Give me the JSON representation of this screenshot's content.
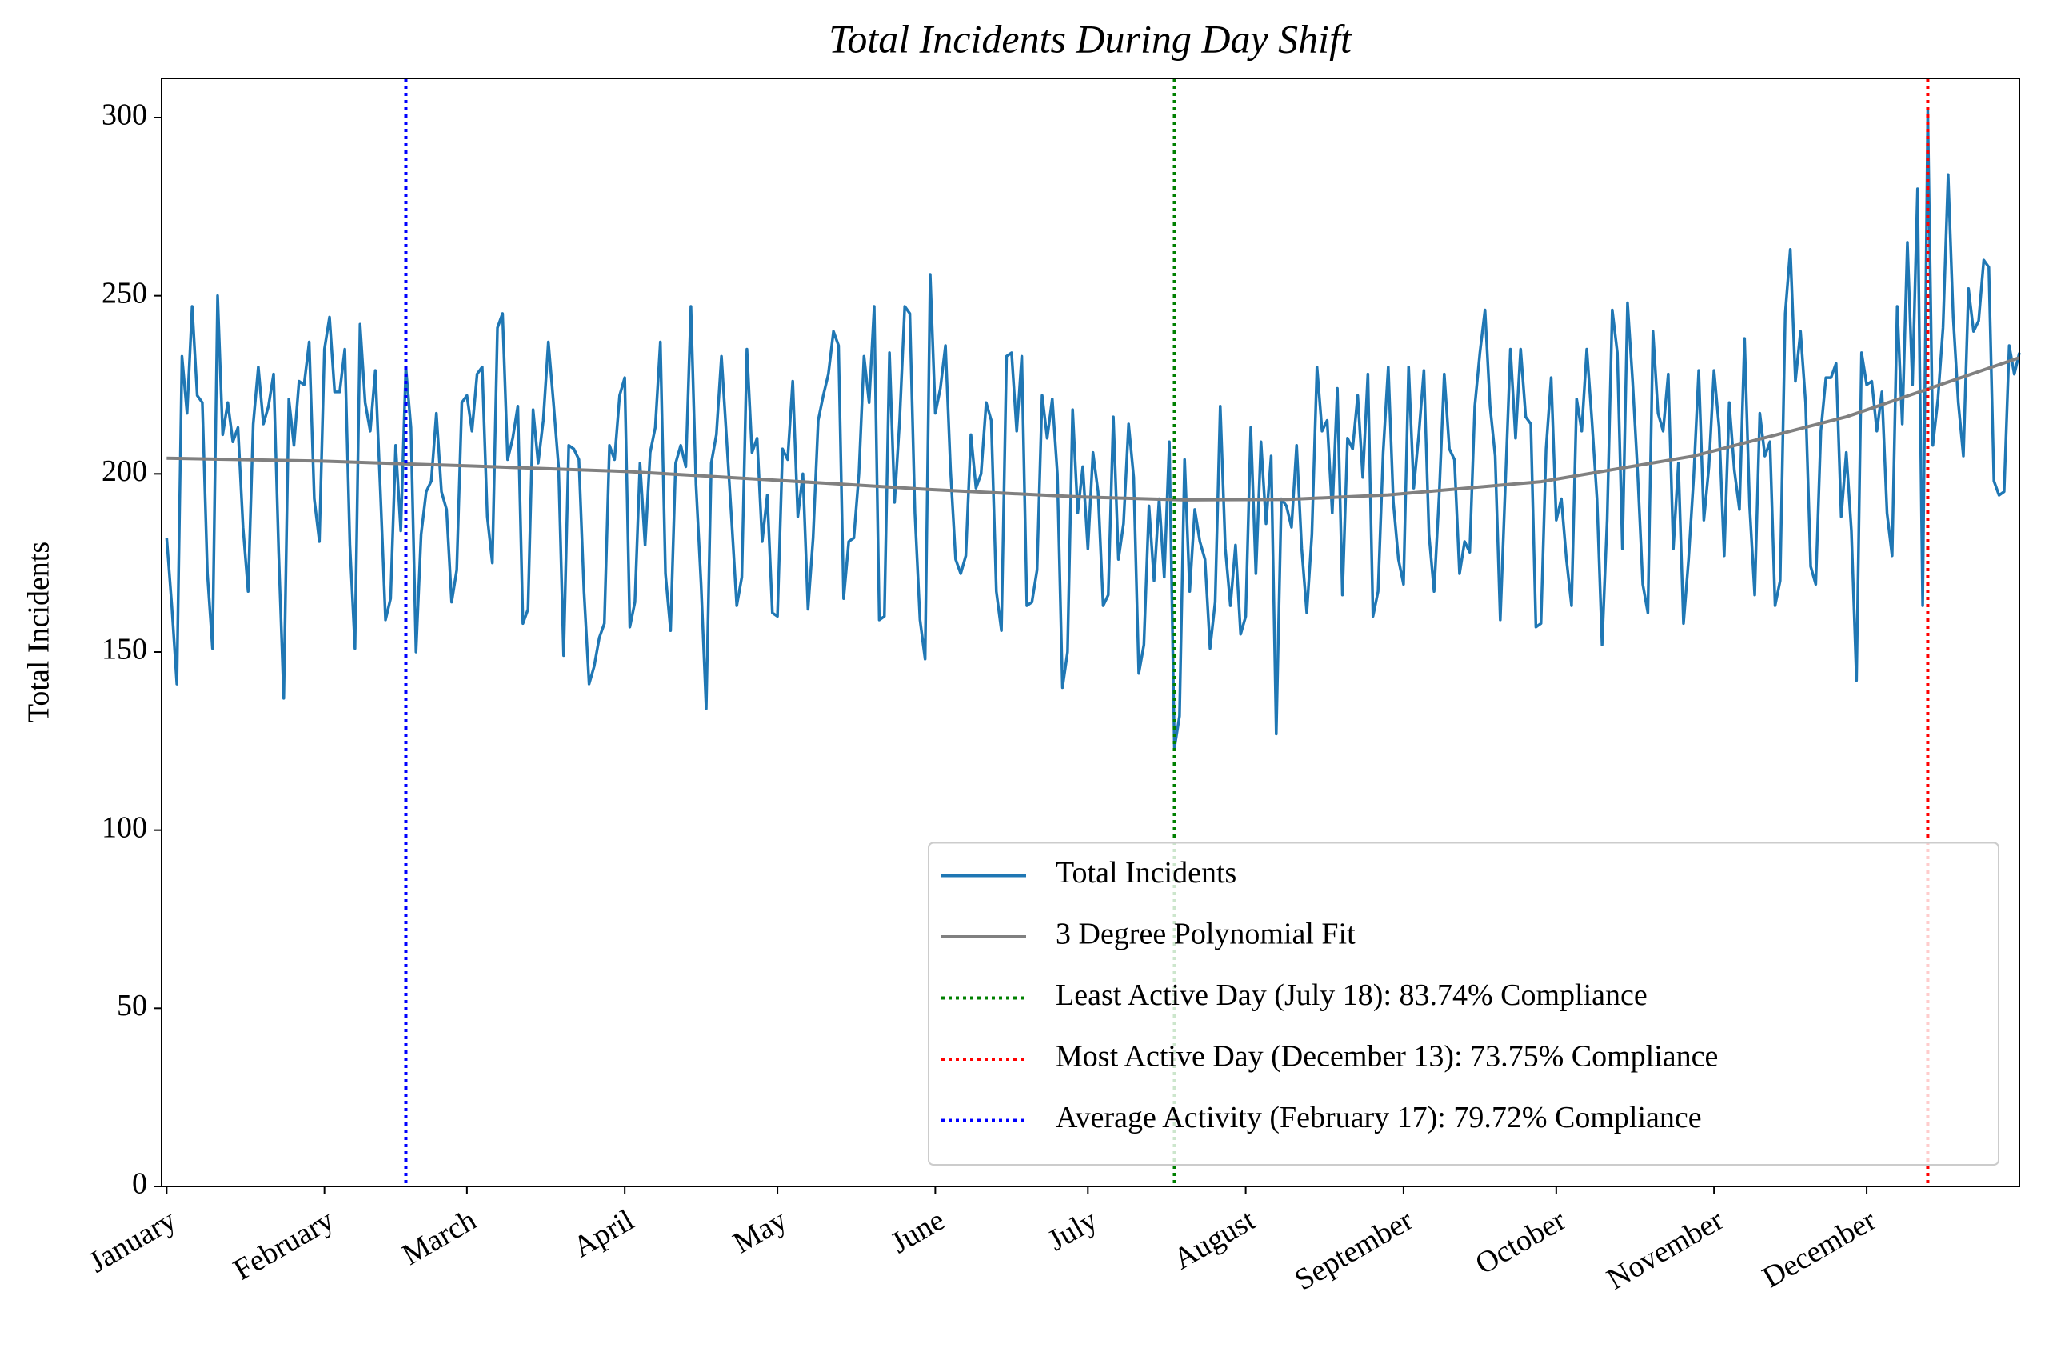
{
  "chart_data": {
    "type": "line",
    "title": "Total Incidents During Day Shift",
    "y_label": "Total Incidents",
    "xlim": [
      -1,
      364
    ],
    "ylim": [
      0,
      311
    ],
    "yticks": [
      0,
      50,
      100,
      150,
      200,
      250,
      300
    ],
    "xticks": [
      {
        "value": 0,
        "label": "January"
      },
      {
        "value": 31,
        "label": "February"
      },
      {
        "value": 59,
        "label": "March"
      },
      {
        "value": 90,
        "label": "April"
      },
      {
        "value": 120,
        "label": "May"
      },
      {
        "value": 151,
        "label": "June"
      },
      {
        "value": 181,
        "label": "July"
      },
      {
        "value": 212,
        "label": "August"
      },
      {
        "value": 243,
        "label": "September"
      },
      {
        "value": 273,
        "label": "October"
      },
      {
        "value": 304,
        "label": "November"
      },
      {
        "value": 334,
        "label": "December"
      }
    ],
    "grid": false,
    "legend": "lower right",
    "x": [
      0,
      1,
      2,
      3,
      4,
      5,
      6,
      7,
      8,
      9,
      10,
      11,
      12,
      13,
      14,
      15,
      16,
      17,
      18,
      19,
      20,
      21,
      22,
      23,
      24,
      25,
      26,
      27,
      28,
      29,
      30,
      31,
      32,
      33,
      34,
      35,
      36,
      37,
      38,
      39,
      40,
      41,
      42,
      43,
      44,
      45,
      46,
      47,
      48,
      49,
      50,
      51,
      52,
      53,
      54,
      55,
      56,
      57,
      58,
      59,
      60,
      61,
      62,
      63,
      64,
      65,
      66,
      67,
      68,
      69,
      70,
      71,
      72,
      73,
      74,
      75,
      76,
      77,
      78,
      79,
      80,
      81,
      82,
      83,
      84,
      85,
      86,
      87,
      88,
      89,
      90,
      91,
      92,
      93,
      94,
      95,
      96,
      97,
      98,
      99,
      100,
      101,
      102,
      103,
      104,
      105,
      106,
      107,
      108,
      109,
      110,
      111,
      112,
      113,
      114,
      115,
      116,
      117,
      118,
      119,
      120,
      121,
      122,
      123,
      124,
      125,
      126,
      127,
      128,
      129,
      130,
      131,
      132,
      133,
      134,
      135,
      136,
      137,
      138,
      139,
      140,
      141,
      142,
      143,
      144,
      145,
      146,
      147,
      148,
      149,
      150,
      151,
      152,
      153,
      154,
      155,
      156,
      157,
      158,
      159,
      160,
      161,
      162,
      163,
      164,
      165,
      166,
      167,
      168,
      169,
      170,
      171,
      172,
      173,
      174,
      175,
      176,
      177,
      178,
      179,
      180,
      181,
      182,
      183,
      184,
      185,
      186,
      187,
      188,
      189,
      190,
      191,
      192,
      193,
      194,
      195,
      196,
      197,
      198,
      199,
      200,
      201,
      202,
      203,
      204,
      205,
      206,
      207,
      208,
      209,
      210,
      211,
      212,
      213,
      214,
      215,
      216,
      217,
      218,
      219,
      220,
      221,
      222,
      223,
      224,
      225,
      226,
      227,
      228,
      229,
      230,
      231,
      232,
      233,
      234,
      235,
      236,
      237,
      238,
      239,
      240,
      241,
      242,
      243,
      244,
      245,
      246,
      247,
      248,
      249,
      250,
      251,
      252,
      253,
      254,
      255,
      256,
      257,
      258,
      259,
      260,
      261,
      262,
      263,
      264,
      265,
      266,
      267,
      268,
      269,
      270,
      271,
      272,
      273,
      274,
      275,
      276,
      277,
      278,
      279,
      280,
      281,
      282,
      283,
      284,
      285,
      286,
      287,
      288,
      289,
      290,
      291,
      292,
      293,
      294,
      295,
      296,
      297,
      298,
      299,
      300,
      301,
      302,
      303,
      304,
      305,
      306,
      307,
      308,
      309,
      310,
      311,
      312,
      313,
      314,
      315,
      316,
      317,
      318,
      319,
      320,
      321,
      322,
      323,
      324,
      325,
      326,
      327,
      328,
      329,
      330,
      331,
      332,
      333,
      334,
      335,
      336,
      337,
      338,
      339,
      340,
      341,
      342,
      343,
      344,
      345,
      346,
      347,
      348,
      349,
      350,
      351,
      352,
      353,
      354,
      355,
      356,
      357,
      358,
      359,
      360,
      361,
      362,
      363,
      364
    ],
    "series": [
      {
        "name": "Total Incidents",
        "color": "#1f77b4",
        "values": [
          182,
          163,
          141,
          233,
          217,
          247,
          222,
          220,
          172,
          151,
          250,
          211,
          220,
          209,
          213,
          185,
          167,
          214,
          230,
          214,
          219,
          228,
          178,
          137,
          221,
          208,
          226,
          225,
          237,
          193,
          181,
          235,
          244,
          223,
          223,
          235,
          180,
          151,
          242,
          220,
          212,
          229,
          195,
          159,
          165,
          208,
          184,
          230,
          213,
          150,
          183,
          195,
          198,
          217,
          195,
          190,
          164,
          173,
          220,
          222,
          212,
          228,
          230,
          188,
          175,
          241,
          245,
          204,
          210,
          219,
          158,
          162,
          218,
          203,
          215,
          237,
          220,
          202,
          149,
          208,
          207,
          204,
          167,
          141,
          146,
          154,
          158,
          208,
          204,
          222,
          227,
          157,
          164,
          203,
          180,
          206,
          213,
          237,
          172,
          156,
          203,
          208,
          202,
          247,
          197,
          169,
          134,
          203,
          211,
          233,
          210,
          187,
          163,
          171,
          235,
          206,
          210,
          181,
          194,
          161,
          160,
          207,
          204,
          226,
          188,
          200,
          162,
          182,
          215,
          222,
          228,
          240,
          236,
          165,
          181,
          182,
          200,
          233,
          220,
          247,
          159,
          160,
          234,
          192,
          215,
          247,
          245,
          189,
          159,
          148,
          256,
          217,
          224,
          236,
          201,
          176,
          172,
          177,
          211,
          196,
          200,
          220,
          215,
          167,
          156,
          233,
          234,
          212,
          233,
          163,
          164,
          173,
          222,
          210,
          221,
          200,
          140,
          150,
          218,
          189,
          202,
          179,
          206,
          195,
          163,
          166,
          216,
          176,
          186,
          214,
          199,
          144,
          152,
          191,
          170,
          193,
          171,
          209,
          123,
          132,
          204,
          167,
          190,
          181,
          176,
          151,
          164,
          219,
          179,
          163,
          180,
          155,
          160,
          213,
          172,
          209,
          186,
          205,
          127,
          193,
          191,
          185,
          208,
          179,
          161,
          183,
          230,
          212,
          215,
          189,
          224,
          166,
          210,
          207,
          222,
          199,
          228,
          160,
          167,
          206,
          230,
          192,
          176,
          169,
          230,
          196,
          211,
          229,
          183,
          167,
          194,
          228,
          207,
          204,
          172,
          181,
          178,
          219,
          234,
          246,
          219,
          205,
          159,
          197,
          235,
          210,
          235,
          216,
          214,
          157,
          158,
          207,
          227,
          187,
          193,
          176,
          163,
          221,
          212,
          235,
          215,
          193,
          152,
          187,
          246,
          234,
          179,
          248,
          226,
          200,
          169,
          161,
          240,
          217,
          212,
          228,
          179,
          203,
          158,
          176,
          199,
          229,
          187,
          202,
          229,
          213,
          177,
          220,
          201,
          190,
          238,
          191,
          166,
          217,
          205,
          209,
          163,
          170,
          245,
          263,
          226,
          240,
          220,
          174,
          169,
          212,
          227,
          227,
          231,
          188,
          206,
          184,
          142,
          234,
          225,
          226,
          212,
          223,
          189,
          177,
          247,
          214,
          265,
          225,
          280,
          163,
          302,
          208,
          221,
          241,
          284,
          244,
          220,
          205,
          252,
          240,
          243,
          260,
          258,
          198,
          194,
          195,
          236,
          228,
          234
        ]
      },
      {
        "name": "3 Degree Polynomial Fit",
        "color": "#808080",
        "x": [
          0,
          30,
          60,
          90,
          120,
          150,
          180,
          200,
          220,
          240,
          270,
          300,
          330,
          364
        ],
        "values": [
          204.4,
          203.6,
          202.2,
          200.7,
          198.2,
          195.6,
          193.5,
          192.7,
          192.8,
          194.1,
          197.8,
          205,
          216,
          232.6
        ]
      }
    ],
    "vlines": [
      {
        "x": 198,
        "color": "green",
        "label": "Least Active Day (July 18): 83.74% Compliance"
      },
      {
        "x": 346,
        "color": "red",
        "label": "Most Active Day (December 13): 73.75% Compliance"
      },
      {
        "x": 47,
        "color": "blue",
        "label": "Average Activity (February 17): 79.72% Compliance"
      }
    ]
  }
}
